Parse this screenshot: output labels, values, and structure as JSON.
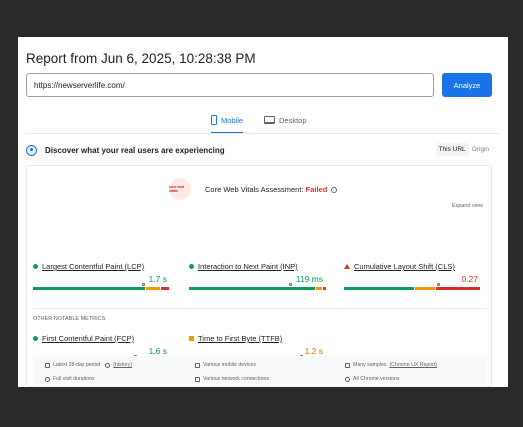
{
  "report": {
    "title": "Report from Jun 6, 2025, 10:28:38 PM",
    "url_value": "https://newserverlife.com/",
    "analyze_label": "Analyze"
  },
  "tabs": [
    {
      "label": "Mobile",
      "icon": "phone-icon",
      "active": true
    },
    {
      "label": "Desktop",
      "icon": "laptop-icon",
      "active": false
    }
  ],
  "discover": {
    "heading": "Discover what your real users are experiencing",
    "toggle_on": "This URL",
    "toggle_off": "Origin"
  },
  "assessment": {
    "logo_text": "core web vitals",
    "prefix": "Core Web Vitals Assessment: ",
    "status": "Failed",
    "expand_label": "Expand view"
  },
  "metrics": [
    {
      "name": "Largest Contentful Paint (LCP)",
      "value": "1.7 s",
      "status": "good",
      "color": "#0c9d58"
    },
    {
      "name": "Interaction to Next Paint (INP)",
      "value": "119 ms",
      "status": "good",
      "color": "#0c9d58"
    },
    {
      "name": "Cumulative Layout Shift (CLS)",
      "value": "0.27",
      "status": "poor",
      "color": "#d93025"
    }
  ],
  "other_heading": "OTHER NOTABLE METRICS",
  "other_metrics": [
    {
      "name": "First Contentful Paint (FCP)",
      "value": "1.6 s",
      "status": "good",
      "color": "#0c9d58"
    },
    {
      "name": "Time to First Byte (TTFB)",
      "value": "1.2 s",
      "status": "needs-improvement",
      "color": "#f29900"
    }
  ],
  "footer": {
    "period_text": "Latest 28-day period",
    "history_link": "(history)",
    "devices": "Various mobile devices",
    "samples_prefix": "Many samples",
    "samples_link": "(Chrome UX Report)",
    "visit": "Full visit durations",
    "network": "Various network connections",
    "versions": "All Chrome versions"
  }
}
